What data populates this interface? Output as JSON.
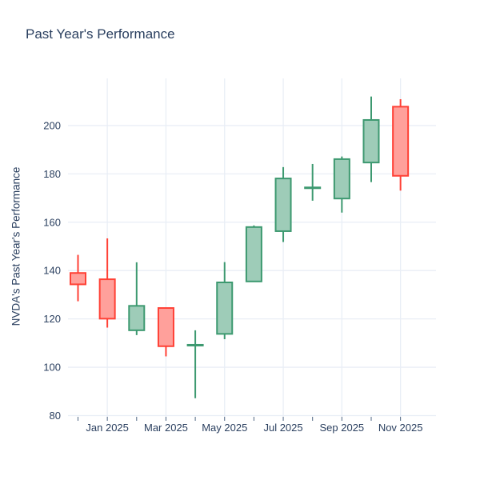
{
  "colors": {
    "text": "#2a3f5f",
    "grid": "#e9eef6",
    "tick_mark": "#506784",
    "background": "#ffffff",
    "increasing_line": "#3D9970",
    "increasing_fill": "#9ECCB8",
    "decreasing_line": "#FF4136",
    "decreasing_fill": "#FFA09B"
  },
  "chart_data": {
    "type": "candlestick",
    "title": "Past Year's Performance",
    "xlabel": "",
    "ylabel": "NVDA's Past Year's Performance",
    "legend": "none",
    "grid": true,
    "y_ticks": [
      80,
      100,
      120,
      140,
      160,
      180,
      200
    ],
    "ylim": [
      79.5,
      219.5
    ],
    "x_tick_labels": [
      "Jan 2025",
      "Mar 2025",
      "May 2025",
      "Jul 2025",
      "Sep 2025",
      "Nov 2025"
    ],
    "candles": [
      {
        "x": "Dec 2024",
        "open": 139.0,
        "high": 146.5,
        "low": 127.3,
        "close": 134.3
      },
      {
        "x": "Jan 2025",
        "open": 136.4,
        "high": 153.3,
        "low": 116.4,
        "close": 120.1
      },
      {
        "x": "Feb 2025",
        "open": 115.3,
        "high": 143.4,
        "low": 113.3,
        "close": 125.4
      },
      {
        "x": "Mar 2025",
        "open": 124.5,
        "high": 124.5,
        "low": 104.5,
        "close": 108.7
      },
      {
        "x": "Apr 2025",
        "open": 109.0,
        "high": 115.3,
        "low": 87.2,
        "close": 109.3
      },
      {
        "x": "May 2025",
        "open": 113.8,
        "high": 143.5,
        "low": 111.6,
        "close": 135.1
      },
      {
        "x": "Jun 2025",
        "open": 135.5,
        "high": 158.7,
        "low": 135.5,
        "close": 158.0
      },
      {
        "x": "Jul 2025",
        "open": 156.3,
        "high": 182.8,
        "low": 151.8,
        "close": 178.1
      },
      {
        "x": "Aug 2025",
        "open": 174.2,
        "high": 184.1,
        "low": 168.9,
        "close": 174.4
      },
      {
        "x": "Sep 2025",
        "open": 169.8,
        "high": 187.2,
        "low": 164.0,
        "close": 186.1
      },
      {
        "x": "Oct 2025",
        "open": 184.7,
        "high": 212.0,
        "low": 176.6,
        "close": 202.3
      },
      {
        "x": "Nov 2025",
        "open": 207.8,
        "high": 210.9,
        "low": 173.1,
        "close": 179.2
      }
    ]
  }
}
